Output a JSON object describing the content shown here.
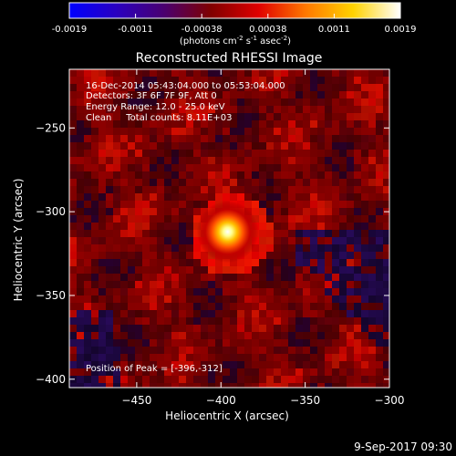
{
  "colorbar": {
    "ticks": [
      "-0.0019",
      "-0.0011",
      "-0.00038",
      "0.00038",
      "0.0011",
      "0.0019"
    ],
    "unit_parts": [
      "(photons cm",
      "-2",
      " s",
      "-1",
      " asec",
      "-2",
      ")"
    ],
    "stops": [
      "#0000ff",
      "#2a00c0",
      "#4a0070",
      "#800000",
      "#e00000",
      "#ff7800",
      "#ffd200",
      "#ffffff"
    ]
  },
  "chart_data": {
    "type": "heatmap",
    "title": "Reconstructed RHESSI Image",
    "xlabel": "Heliocentric X (arcsec)",
    "ylabel": "Heliocentric Y (arcsec)",
    "xlim": [
      -490,
      -300
    ],
    "ylim": [
      -405,
      -215
    ],
    "xticks": [
      -450,
      -400,
      -350,
      -300
    ],
    "xtick_labels": [
      "−450",
      "−400",
      "−350",
      "−300"
    ],
    "yticks": [
      -250,
      -300,
      -350,
      -400
    ],
    "ytick_labels": [
      "−250",
      "−300",
      "−350",
      "−400"
    ],
    "peak": {
      "x": -396,
      "y": -312
    },
    "annotations": [
      "16-Dec-2014 05:43:04.000 to 05:53:04.000",
      "Detectors: 3F 6F 7F 9F, Att 0",
      "Energy Range: 12.0 - 25.0 keV",
      "Clean     Total counts: 8.11E+03"
    ],
    "peak_label": "Position of Peak = [-396,-312]"
  },
  "footer": {
    "timestamp": "9-Sep-2017 09:30"
  }
}
